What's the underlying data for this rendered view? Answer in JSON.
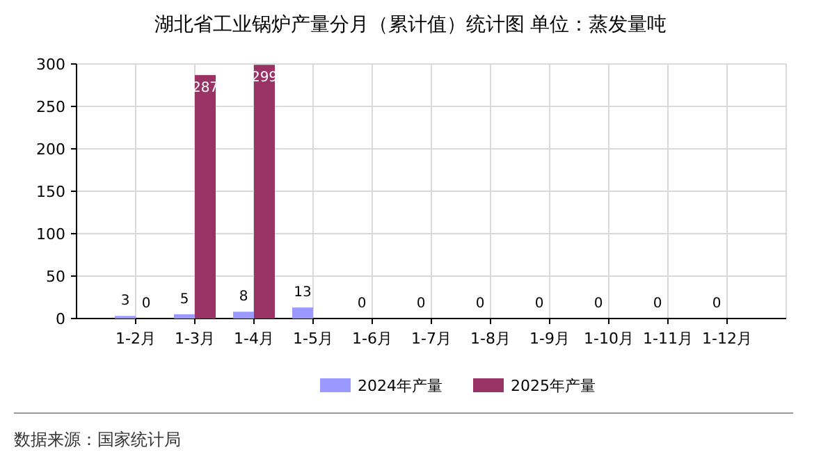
{
  "chart_data": {
    "type": "bar",
    "title": "湖北省工业锅炉产量分月（累计值）统计图 单位：蒸发量吨",
    "categories": [
      "1-2月",
      "1-3月",
      "1-4月",
      "1-5月",
      "1-6月",
      "1-7月",
      "1-8月",
      "1-9月",
      "1-10月",
      "1-11月",
      "1-12月"
    ],
    "series": [
      {
        "name": "2024年产量",
        "color": "#9999ff",
        "values": [
          3,
          5,
          8,
          13,
          0,
          0,
          0,
          0,
          0,
          0,
          0
        ]
      },
      {
        "name": "2025年产量",
        "color": "#993366",
        "values": [
          0,
          287,
          299,
          null,
          null,
          null,
          null,
          null,
          null,
          null,
          null
        ]
      }
    ],
    "ylim": [
      0,
      300
    ],
    "yticks": [
      0,
      50,
      100,
      150,
      200,
      250,
      300
    ],
    "grid": true,
    "legend": "bottom",
    "data_labels": true,
    "annotations": [
      "数据来源：国家统计局"
    ]
  }
}
